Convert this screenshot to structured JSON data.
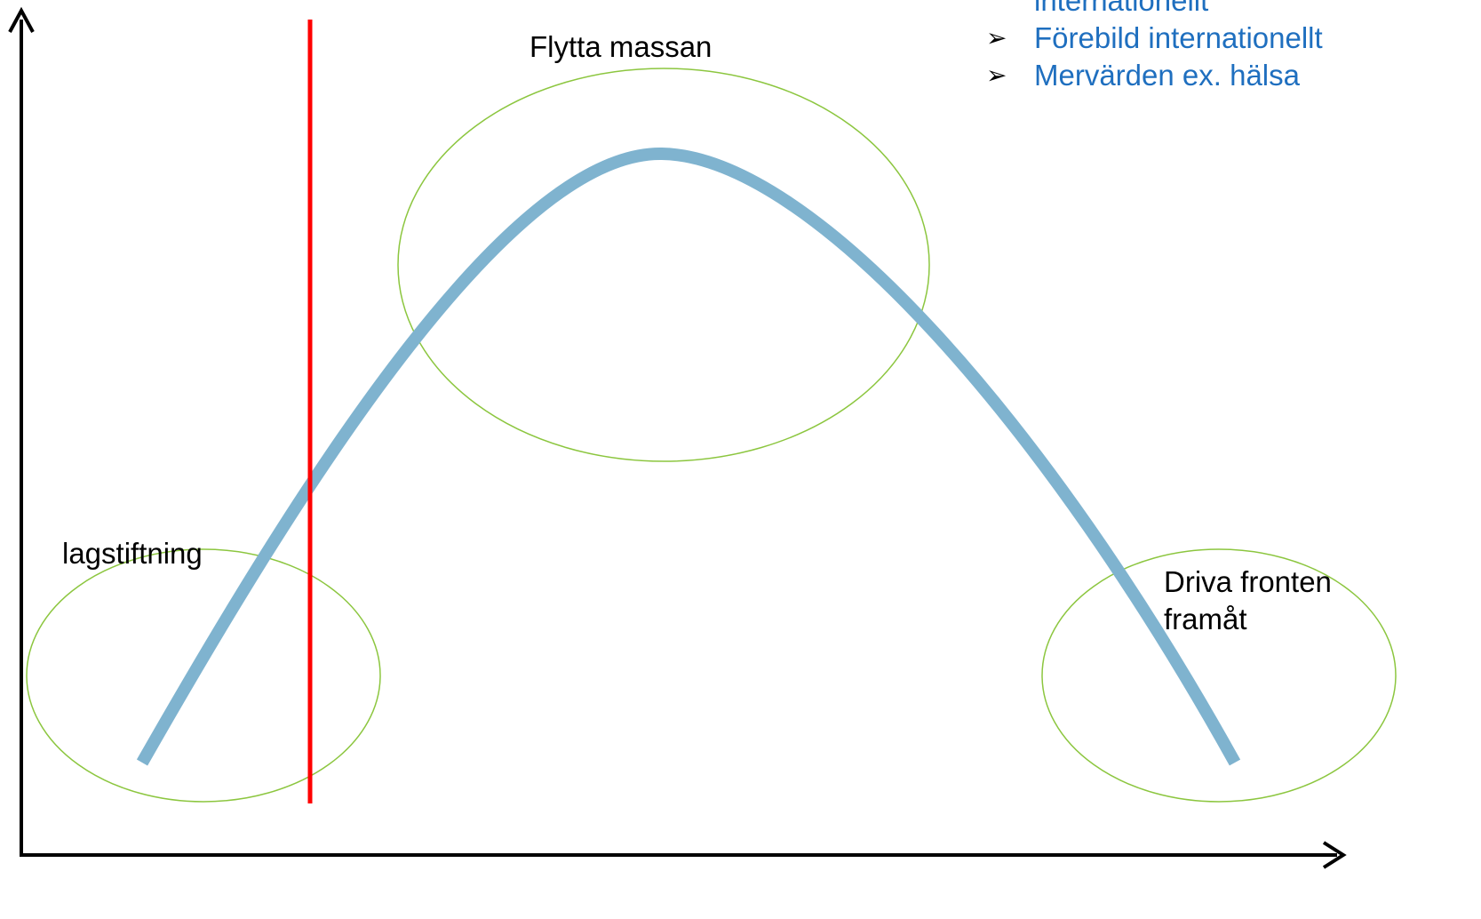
{
  "colors": {
    "curve": "#7fb3cf",
    "ellipse": "#8cc63f",
    "divider": "#ff0000",
    "axis": "#000000",
    "bullet_text": "#1f6fbf"
  },
  "labels": {
    "top_center": "Flytta massan",
    "bottom_left": "lagstiftning",
    "bottom_right_line1": "Driva fronten",
    "bottom_right_line2": "framåt"
  },
  "bullets": {
    "marker": "➢",
    "partial_line": "internationellt",
    "items": [
      "Förebild internationellt",
      "Mervärden ex. hälsa"
    ]
  }
}
